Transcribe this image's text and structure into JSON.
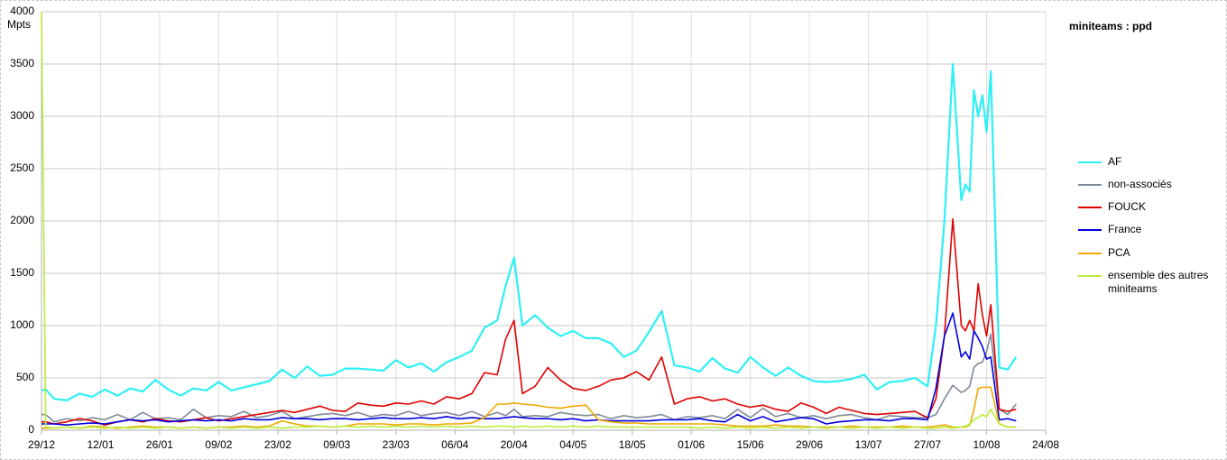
{
  "chart_data": {
    "type": "line",
    "title": "miniteams : ppd",
    "y_label": "Mpts",
    "x": [
      0,
      1,
      3,
      6,
      9,
      12,
      15,
      18,
      21,
      24,
      27,
      30,
      33,
      36,
      39,
      42,
      45,
      48,
      51,
      54,
      57,
      60,
      63,
      66,
      69,
      72,
      75,
      78,
      81,
      84,
      87,
      90,
      93,
      96,
      99,
      102,
      105,
      108,
      110,
      112,
      114,
      117,
      120,
      123,
      126,
      129,
      132,
      135,
      138,
      141,
      144,
      147,
      150,
      153,
      156,
      159,
      162,
      165,
      168,
      171,
      174,
      177,
      180,
      183,
      186,
      189,
      192,
      195,
      198,
      201,
      204,
      207,
      210,
      212,
      214,
      216,
      218,
      219,
      220,
      221,
      222,
      223,
      224,
      225,
      227,
      229,
      231
    ],
    "xlim": [
      0,
      238
    ],
    "xticks": [
      {
        "value": 0,
        "label": "29/12"
      },
      {
        "value": 14,
        "label": "12/01"
      },
      {
        "value": 28,
        "label": "26/01"
      },
      {
        "value": 42,
        "label": "09/02"
      },
      {
        "value": 56,
        "label": "23/02"
      },
      {
        "value": 70,
        "label": "09/03"
      },
      {
        "value": 84,
        "label": "23/03"
      },
      {
        "value": 98,
        "label": "06/04"
      },
      {
        "value": 112,
        "label": "20/04"
      },
      {
        "value": 126,
        "label": "04/05"
      },
      {
        "value": 140,
        "label": "18/05"
      },
      {
        "value": 154,
        "label": "01/06"
      },
      {
        "value": 168,
        "label": "15/06"
      },
      {
        "value": 182,
        "label": "29/06"
      },
      {
        "value": 196,
        "label": "13/07"
      },
      {
        "value": 210,
        "label": "27/07"
      },
      {
        "value": 224,
        "label": "10/08"
      },
      {
        "value": 238,
        "label": "24/08"
      }
    ],
    "ylim": [
      0,
      4000
    ],
    "yticks": [
      0,
      500,
      1000,
      1500,
      2000,
      2500,
      3000,
      3500,
      4000
    ],
    "grid": true,
    "legend": "right",
    "series": [
      {
        "name": "AF",
        "color": "#2ef0f5",
        "values": [
          380,
          390,
          300,
          285,
          350,
          320,
          390,
          330,
          400,
          370,
          480,
          390,
          330,
          400,
          380,
          460,
          380,
          410,
          440,
          470,
          580,
          500,
          610,
          520,
          530,
          590,
          590,
          580,
          570,
          670,
          600,
          640,
          560,
          650,
          700,
          760,
          980,
          1050,
          1380,
          1650,
          1000,
          1100,
          980,
          900,
          950,
          880,
          880,
          830,
          700,
          760,
          940,
          1140,
          620,
          600,
          560,
          690,
          590,
          550,
          700,
          600,
          520,
          600,
          520,
          470,
          460,
          470,
          490,
          530,
          390,
          460,
          470,
          500,
          420,
          1000,
          2000,
          3500,
          2200,
          2350,
          2280,
          3250,
          3000,
          3200,
          2850,
          3430,
          600,
          580,
          700
        ]
      },
      {
        "name": "non-associés",
        "color": "#7f8a99",
        "values": [
          150,
          150,
          80,
          110,
          90,
          120,
          100,
          150,
          100,
          170,
          110,
          120,
          100,
          200,
          120,
          140,
          130,
          180,
          120,
          140,
          180,
          110,
          130,
          150,
          160,
          140,
          170,
          130,
          150,
          140,
          180,
          140,
          160,
          170,
          140,
          180,
          130,
          170,
          140,
          200,
          130,
          140,
          130,
          170,
          150,
          140,
          150,
          110,
          140,
          120,
          130,
          150,
          100,
          130,
          120,
          140,
          110,
          200,
          120,
          210,
          130,
          160,
          120,
          140,
          110,
          140,
          150,
          120,
          100,
          140,
          130,
          120,
          120,
          150,
          300,
          430,
          360,
          380,
          420,
          600,
          640,
          650,
          750,
          920,
          200,
          150,
          250
        ]
      },
      {
        "name": "FOUCK",
        "color": "#e00000",
        "values": [
          80,
          80,
          60,
          80,
          110,
          90,
          50,
          80,
          100,
          80,
          110,
          90,
          80,
          100,
          120,
          90,
          110,
          130,
          150,
          170,
          190,
          170,
          200,
          230,
          190,
          180,
          260,
          240,
          230,
          260,
          250,
          280,
          250,
          320,
          300,
          350,
          550,
          530,
          870,
          1050,
          350,
          420,
          600,
          480,
          400,
          380,
          420,
          480,
          500,
          560,
          480,
          700,
          250,
          300,
          320,
          280,
          300,
          250,
          220,
          240,
          200,
          180,
          260,
          220,
          160,
          220,
          190,
          160,
          150,
          160,
          170,
          180,
          120,
          300,
          900,
          2020,
          1000,
          950,
          1050,
          950,
          1400,
          1100,
          900,
          1200,
          200,
          180,
          200
        ]
      },
      {
        "name": "France",
        "color": "#0000dd",
        "values": [
          60,
          60,
          60,
          50,
          60,
          70,
          60,
          80,
          100,
          90,
          100,
          80,
          90,
          100,
          90,
          100,
          90,
          110,
          100,
          100,
          120,
          110,
          110,
          100,
          110,
          110,
          100,
          110,
          120,
          110,
          110,
          120,
          110,
          130,
          110,
          120,
          110,
          110,
          120,
          130,
          120,
          110,
          110,
          100,
          110,
          90,
          100,
          90,
          90,
          90,
          90,
          100,
          100,
          100,
          110,
          90,
          80,
          150,
          90,
          130,
          80,
          100,
          120,
          110,
          60,
          80,
          90,
          100,
          100,
          90,
          110,
          110,
          100,
          400,
          900,
          1120,
          700,
          750,
          680,
          950,
          880,
          800,
          680,
          700,
          100,
          110,
          90
        ]
      },
      {
        "name": "PCA",
        "color": "#f0a800",
        "values": [
          20,
          20,
          20,
          30,
          20,
          40,
          30,
          20,
          30,
          40,
          30,
          30,
          20,
          30,
          20,
          30,
          30,
          40,
          30,
          40,
          90,
          60,
          40,
          40,
          30,
          40,
          60,
          60,
          60,
          50,
          60,
          60,
          50,
          60,
          60,
          70,
          120,
          250,
          250,
          260,
          250,
          240,
          220,
          210,
          230,
          240,
          100,
          80,
          70,
          70,
          60,
          60,
          60,
          60,
          60,
          60,
          50,
          40,
          40,
          40,
          50,
          40,
          40,
          30,
          30,
          30,
          40,
          30,
          30,
          30,
          40,
          30,
          30,
          40,
          50,
          30,
          30,
          30,
          50,
          200,
          400,
          410,
          410,
          410,
          60,
          30,
          30
        ]
      },
      {
        "name": "ensemble des autres miniteams",
        "color": "#b8ee3a",
        "values": [
          4000,
          30,
          20,
          30,
          20,
          30,
          20,
          30,
          20,
          30,
          20,
          30,
          20,
          30,
          20,
          30,
          20,
          30,
          20,
          30,
          20,
          30,
          30,
          40,
          30,
          40,
          30,
          40,
          30,
          40,
          30,
          40,
          30,
          40,
          30,
          40,
          30,
          40,
          40,
          30,
          40,
          30,
          40,
          30,
          40,
          30,
          40,
          30,
          30,
          30,
          30,
          30,
          30,
          30,
          20,
          30,
          20,
          30,
          20,
          30,
          20,
          30,
          20,
          30,
          20,
          30,
          20,
          30,
          20,
          30,
          20,
          30,
          20,
          20,
          30,
          20,
          30,
          40,
          60,
          100,
          120,
          150,
          130,
          200,
          60,
          30,
          30
        ]
      }
    ]
  }
}
